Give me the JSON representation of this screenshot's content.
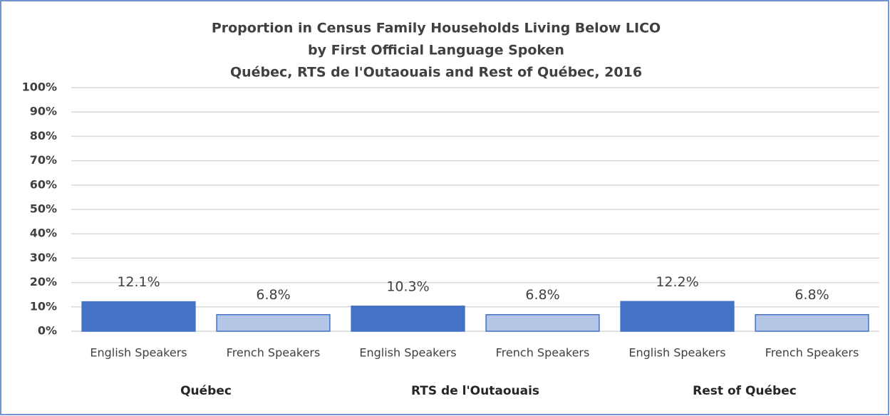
{
  "chart_data": {
    "type": "bar",
    "title": [
      "Proportion in Census Family Households Living Below LICO",
      "by First Official Language Spoken",
      "Québec, RTS de l'Outaouais and Rest of Québec, 2016"
    ],
    "categories": [
      "English Speakers",
      "French Speakers",
      "English Speakers",
      "French Speakers",
      "English Speakers",
      "French Speakers"
    ],
    "groups": [
      "Québec",
      "RTS de l'Outaouais",
      "Rest of Québec"
    ],
    "values": [
      12.1,
      6.8,
      10.3,
      6.8,
      12.2,
      6.8
    ],
    "value_labels": [
      "12.1%",
      "6.8%",
      "10.3%",
      "6.8%",
      "12.2%",
      "6.8%"
    ],
    "colors": [
      "#4472c4",
      "#b4c7e7",
      "#4472c4",
      "#b4c7e7",
      "#4472c4",
      "#b4c7e7"
    ],
    "edge_color": "#4472c4",
    "ylim": [
      0,
      100
    ],
    "yticks": [
      {
        "value": 0,
        "label": "0%"
      },
      {
        "value": 10,
        "label": "10%"
      },
      {
        "value": 20,
        "label": "20%"
      },
      {
        "value": 30,
        "label": "30%"
      },
      {
        "value": 40,
        "label": "40%"
      },
      {
        "value": 50,
        "label": "50%"
      },
      {
        "value": 60,
        "label": "60%"
      },
      {
        "value": 70,
        "label": "70%"
      },
      {
        "value": 80,
        "label": "80%"
      },
      {
        "value": 90,
        "label": "90%"
      },
      {
        "value": 100,
        "label": "100%"
      }
    ],
    "grid": true
  }
}
